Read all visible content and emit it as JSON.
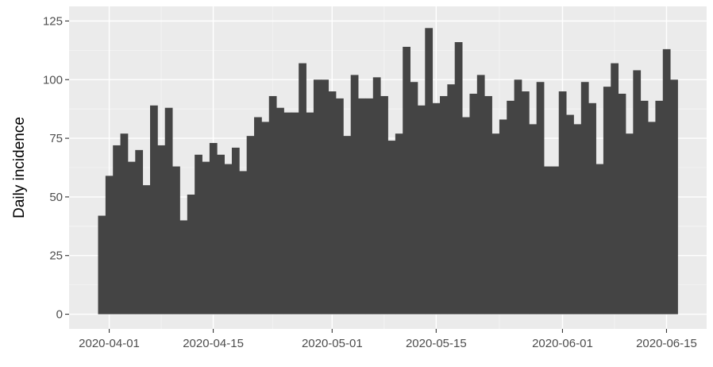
{
  "chart_data": {
    "type": "bar",
    "ylabel": "Daily incidence",
    "xlabel": "",
    "x_start": "2020-03-31",
    "x_ticks": [
      "2020-04-01",
      "2020-04-15",
      "2020-05-01",
      "2020-05-15",
      "2020-06-01",
      "2020-06-15"
    ],
    "y_ticks": [
      0,
      25,
      50,
      75,
      100,
      125
    ],
    "ylim": [
      0,
      125
    ],
    "grid": true,
    "colors": {
      "bar": "#444444",
      "panel": "#ebebeb",
      "grid_major": "#ffffff",
      "grid_minor": "#f5f5f5"
    },
    "values": [
      42,
      59,
      72,
      77,
      65,
      70,
      55,
      89,
      72,
      88,
      63,
      40,
      51,
      68,
      65,
      73,
      68,
      64,
      71,
      61,
      76,
      84,
      82,
      93,
      88,
      86,
      86,
      107,
      86,
      100,
      100,
      95,
      92,
      76,
      102,
      92,
      92,
      101,
      93,
      74,
      77,
      114,
      99,
      89,
      122,
      90,
      93,
      98,
      116,
      84,
      94,
      102,
      93,
      77,
      83,
      91,
      100,
      95,
      81,
      99,
      63,
      63,
      95,
      85,
      81,
      99,
      90,
      64,
      97,
      107,
      94,
      77,
      104,
      91,
      82,
      91,
      113,
      100
    ]
  }
}
